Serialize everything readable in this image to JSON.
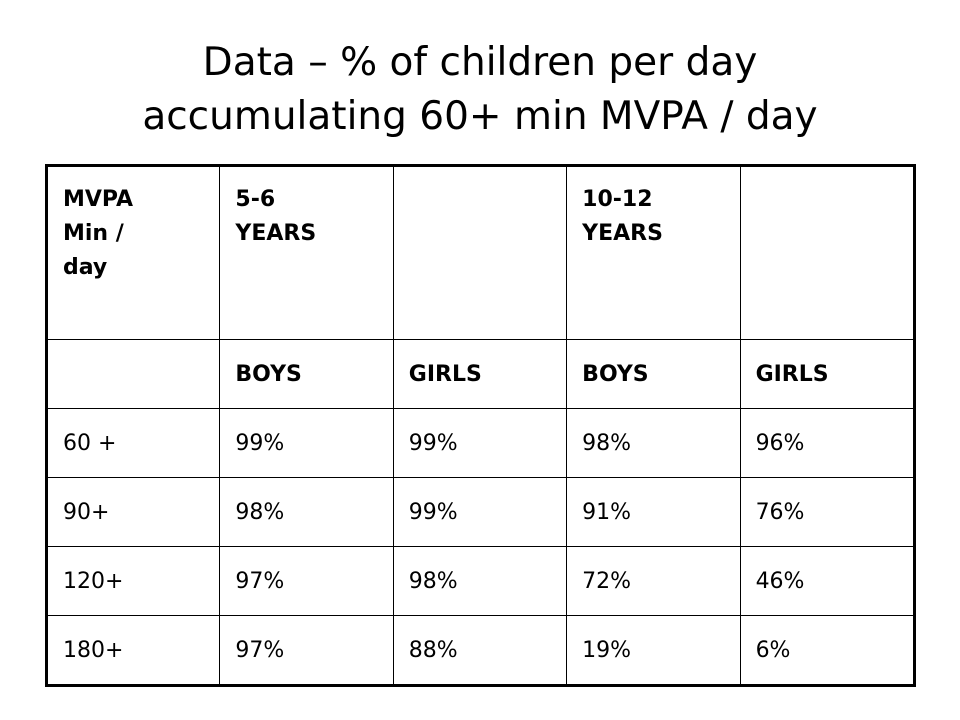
{
  "title": {
    "line1": "Data – % of children per day",
    "line2": "accumulating 60+ min MVPA / day"
  },
  "table": {
    "header": {
      "col0": [
        "MVPA",
        "Min /",
        "day"
      ],
      "col1": [
        "5-6",
        "YEARS"
      ],
      "col2": [],
      "col3": [
        "10-12",
        "YEARS"
      ],
      "col4": []
    },
    "subheader": [
      "",
      "BOYS",
      "GIRLS",
      "BOYS",
      "GIRLS"
    ],
    "rows": [
      [
        "60 +",
        "99%",
        "99%",
        "98%",
        "96%"
      ],
      [
        "90+",
        "98%",
        "99%",
        "91%",
        "76%"
      ],
      [
        "120+",
        "97%",
        "98%",
        "72%",
        "46%"
      ],
      [
        "180+",
        "97%",
        "88%",
        "19%",
        "6%"
      ]
    ]
  }
}
